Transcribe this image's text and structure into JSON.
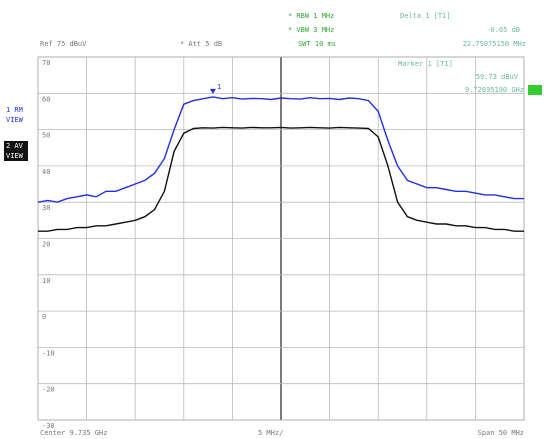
{
  "chart_data": {
    "type": "line",
    "ref_level": "Ref 75 dBuV",
    "attenuation": "* Att 5 dB",
    "settings": [
      "* RBW 1 MHz",
      "* VBW 3 MHz",
      "SWT 10 ms"
    ],
    "delta_marker": [
      "Delta 1 [T1]",
      "-0.05 dB",
      "22.75075150 MHz"
    ],
    "marker": [
      "Marker 1 [T1]",
      "59.73 dBuV",
      "9.72695190 GHz"
    ],
    "marker_label": "1",
    "center": "Center 9.735 GHz",
    "per_div": "5 MHz/",
    "span": "Span 50 MHz",
    "x": [
      -25,
      -24,
      -23,
      -22,
      -21,
      -20,
      -19,
      -18,
      -17,
      -16,
      -15,
      -14,
      -13,
      -12,
      -11,
      -10,
      -9,
      -8,
      -7,
      -6,
      -5,
      -4,
      -3,
      -2,
      -1,
      0,
      1,
      2,
      3,
      4,
      5,
      6,
      7,
      8,
      9,
      10,
      11,
      12,
      13,
      14,
      15,
      16,
      17,
      18,
      19,
      20,
      21,
      22,
      23,
      24,
      25
    ],
    "series": [
      {
        "name": "1 RM",
        "mode": "VIEW",
        "color": "#2030e8",
        "values": [
          30,
          30.5,
          30,
          31,
          31.5,
          32,
          31.5,
          33,
          33,
          34,
          35,
          36,
          38,
          42,
          50,
          57,
          58,
          58.5,
          59,
          58.5,
          58.8,
          58.4,
          58.6,
          58.5,
          58.3,
          58.7,
          58.5,
          58.4,
          58.8,
          58.5,
          58.6,
          58.3,
          58.7,
          58.5,
          58,
          55,
          47,
          40,
          36,
          35,
          34,
          34,
          33.5,
          33,
          33,
          32.5,
          32,
          32,
          31.5,
          31,
          31
        ]
      },
      {
        "name": "2 AV",
        "mode": "VIEW",
        "color": "#111111",
        "values": [
          22,
          22,
          22.5,
          22.5,
          23,
          23,
          23.5,
          23.5,
          24,
          24.5,
          25,
          26,
          28,
          33,
          44,
          49,
          50.3,
          50.5,
          50.4,
          50.6,
          50.5,
          50.4,
          50.6,
          50.5,
          50.5,
          50.6,
          50.4,
          50.5,
          50.6,
          50.5,
          50.4,
          50.6,
          50.5,
          50.4,
          50.3,
          48,
          40,
          30,
          26,
          25,
          24.5,
          24,
          24,
          23.5,
          23.5,
          23,
          23,
          22.5,
          22.5,
          22,
          22
        ]
      }
    ],
    "xlim": [
      -25,
      25
    ],
    "xticks": [
      -25,
      -20,
      -15,
      -10,
      -5,
      0,
      5,
      10,
      15,
      20,
      25
    ],
    "ylim": [
      -30,
      70
    ],
    "yticks": [
      70,
      60,
      50,
      40,
      30,
      20,
      10,
      0,
      -10,
      -20,
      -30
    ],
    "grid": true
  }
}
